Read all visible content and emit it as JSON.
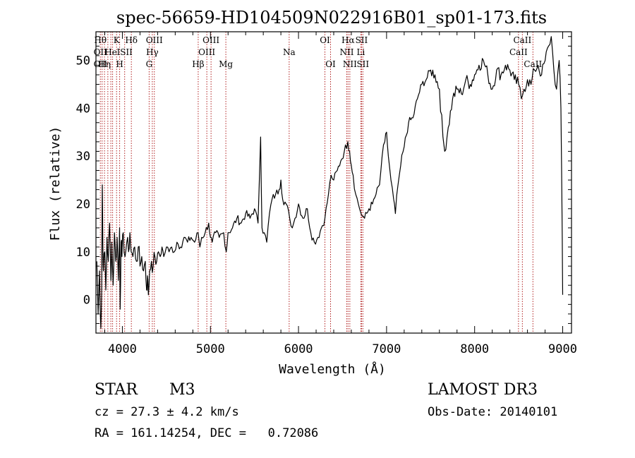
{
  "chart_data": {
    "type": "line",
    "title": "spec-56659-HD104509N022916B01_sp01-173.fits",
    "xlabel": "Wavelength (Å)",
    "ylabel": "Flux (relative)",
    "xlim": [
      3700,
      9100
    ],
    "ylim": [
      -7,
      56
    ],
    "x_ticks": [
      4000,
      5000,
      6000,
      7000,
      8000,
      9000
    ],
    "y_ticks": [
      0,
      10,
      20,
      30,
      40,
      50
    ],
    "grid": false,
    "line_color": "#000000",
    "marker_color": "#b22222",
    "series": [
      {
        "name": "spectrum",
        "points": [
          [
            3710,
            8
          ],
          [
            3725,
            -3
          ],
          [
            3740,
            6
          ],
          [
            3755,
            -6
          ],
          [
            3765,
            2
          ],
          [
            3772,
            24
          ],
          [
            3778,
            12
          ],
          [
            3785,
            6
          ],
          [
            3800,
            10
          ],
          [
            3812,
            2
          ],
          [
            3825,
            13
          ],
          [
            3840,
            8
          ],
          [
            3855,
            16
          ],
          [
            3870,
            4
          ],
          [
            3880,
            12
          ],
          [
            3895,
            3
          ],
          [
            3910,
            14
          ],
          [
            3925,
            8
          ],
          [
            3940,
            13
          ],
          [
            3955,
            4
          ],
          [
            3968,
            15
          ],
          [
            3975,
            -2
          ],
          [
            3985,
            12
          ],
          [
            3995,
            9
          ],
          [
            4010,
            14
          ],
          [
            4030,
            9
          ],
          [
            4050,
            12
          ],
          [
            4070,
            10
          ],
          [
            4085,
            14
          ],
          [
            4100,
            10
          ],
          [
            4120,
            9
          ],
          [
            4140,
            11
          ],
          [
            4160,
            8
          ],
          [
            4180,
            11
          ],
          [
            4200,
            7
          ],
          [
            4220,
            9
          ],
          [
            4240,
            6
          ],
          [
            4260,
            8
          ],
          [
            4275,
            2
          ],
          [
            4285,
            5
          ],
          [
            4295,
            1
          ],
          [
            4310,
            6
          ],
          [
            4330,
            8
          ],
          [
            4350,
            7
          ],
          [
            4370,
            9
          ],
          [
            4390,
            8
          ],
          [
            4410,
            10
          ],
          [
            4430,
            9
          ],
          [
            4450,
            11
          ],
          [
            4470,
            9
          ],
          [
            4500,
            11
          ],
          [
            4530,
            10
          ],
          [
            4560,
            11
          ],
          [
            4590,
            10
          ],
          [
            4620,
            12
          ],
          [
            4660,
            11
          ],
          [
            4700,
            13
          ],
          [
            4740,
            12
          ],
          [
            4780,
            13
          ],
          [
            4820,
            12
          ],
          [
            4860,
            14
          ],
          [
            4880,
            11
          ],
          [
            4900,
            13
          ],
          [
            4940,
            14
          ],
          [
            4980,
            16
          ],
          [
            5000,
            13
          ],
          [
            5020,
            12
          ],
          [
            5060,
            14
          ],
          [
            5100,
            13
          ],
          [
            5150,
            14
          ],
          [
            5180,
            10
          ],
          [
            5200,
            14
          ],
          [
            5250,
            15
          ],
          [
            5300,
            17
          ],
          [
            5350,
            16
          ],
          [
            5400,
            18
          ],
          [
            5450,
            17
          ],
          [
            5500,
            19
          ],
          [
            5540,
            16
          ],
          [
            5570,
            34
          ],
          [
            5585,
            15
          ],
          [
            5610,
            14
          ],
          [
            5640,
            12
          ],
          [
            5670,
            18
          ],
          [
            5700,
            21
          ],
          [
            5740,
            22
          ],
          [
            5780,
            23
          ],
          [
            5800,
            25
          ],
          [
            5820,
            21
          ],
          [
            5860,
            20
          ],
          [
            5900,
            17
          ],
          [
            5930,
            15
          ],
          [
            5960,
            17
          ],
          [
            6000,
            20
          ],
          [
            6050,
            17
          ],
          [
            6100,
            19
          ],
          [
            6140,
            14
          ],
          [
            6180,
            12
          ],
          [
            6220,
            13
          ],
          [
            6260,
            15
          ],
          [
            6300,
            17
          ],
          [
            6340,
            22
          ],
          [
            6370,
            26
          ],
          [
            6400,
            25
          ],
          [
            6440,
            27
          ],
          [
            6480,
            29
          ],
          [
            6520,
            31
          ],
          [
            6560,
            33
          ],
          [
            6580,
            31
          ],
          [
            6600,
            28
          ],
          [
            6620,
            26
          ],
          [
            6650,
            22
          ],
          [
            6680,
            20
          ],
          [
            6710,
            18
          ],
          [
            6750,
            17
          ],
          [
            6800,
            19
          ],
          [
            6840,
            20
          ],
          [
            6880,
            22
          ],
          [
            6920,
            24
          ],
          [
            6950,
            30
          ],
          [
            6980,
            33
          ],
          [
            7000,
            35
          ],
          [
            7020,
            30
          ],
          [
            7050,
            25
          ],
          [
            7080,
            21
          ],
          [
            7100,
            18
          ],
          [
            7130,
            24
          ],
          [
            7160,
            28
          ],
          [
            7200,
            32
          ],
          [
            7250,
            37
          ],
          [
            7300,
            38
          ],
          [
            7350,
            42
          ],
          [
            7400,
            45
          ],
          [
            7450,
            46
          ],
          [
            7500,
            48
          ],
          [
            7550,
            47
          ],
          [
            7600,
            44
          ],
          [
            7640,
            34
          ],
          [
            7660,
            31
          ],
          [
            7700,
            36
          ],
          [
            7750,
            42
          ],
          [
            7800,
            44
          ],
          [
            7850,
            43
          ],
          [
            7900,
            46
          ],
          [
            7950,
            45
          ],
          [
            8000,
            47
          ],
          [
            8050,
            49
          ],
          [
            8100,
            50
          ],
          [
            8150,
            47
          ],
          [
            8200,
            44
          ],
          [
            8250,
            48
          ],
          [
            8300,
            47
          ],
          [
            8350,
            49
          ],
          [
            8400,
            48
          ],
          [
            8450,
            46
          ],
          [
            8500,
            45
          ],
          [
            8530,
            42
          ],
          [
            8560,
            44
          ],
          [
            8600,
            46
          ],
          [
            8640,
            45
          ],
          [
            8680,
            48
          ],
          [
            8720,
            49
          ],
          [
            8760,
            47
          ],
          [
            8800,
            50
          ],
          [
            8840,
            53
          ],
          [
            8870,
            55
          ],
          [
            8900,
            48
          ],
          [
            8930,
            44
          ],
          [
            8960,
            50
          ],
          [
            8980,
            40
          ],
          [
            8995,
            13
          ],
          [
            9000,
            1
          ]
        ]
      }
    ],
    "line_markers": [
      {
        "wl": 3750,
        "labels": [
          {
            "text": "Hθ",
            "row": 0
          },
          {
            "text": "OII",
            "row": 1
          },
          {
            "text": "OII",
            "row": 2
          }
        ]
      },
      {
        "wl": 3770,
        "labels": []
      },
      {
        "wl": 3797,
        "labels": [
          {
            "text": "Hη",
            "row": 2
          }
        ]
      },
      {
        "wl": 3835,
        "labels": []
      },
      {
        "wl": 3869,
        "labels": [
          {
            "text": "He",
            "row": 1
          }
        ]
      },
      {
        "wl": 3889,
        "labels": []
      },
      {
        "wl": 3934,
        "labels": [
          {
            "text": "K",
            "row": 0
          }
        ]
      },
      {
        "wl": 3969,
        "labels": [
          {
            "text": "H",
            "row": 2
          }
        ]
      },
      {
        "wl": 4026,
        "labels": [
          {
            "text": "ISII",
            "row": 1
          }
        ]
      },
      {
        "wl": 4102,
        "labels": [
          {
            "text": "Hδ",
            "row": 0
          }
        ]
      },
      {
        "wl": 4304,
        "labels": [
          {
            "text": "G",
            "row": 2
          }
        ]
      },
      {
        "wl": 4340,
        "labels": [
          {
            "text": "Hγ",
            "row": 1
          }
        ]
      },
      {
        "wl": 4363,
        "labels": [
          {
            "text": "OIII",
            "row": 0
          }
        ]
      },
      {
        "wl": 4861,
        "labels": [
          {
            "text": "Hβ",
            "row": 2
          }
        ]
      },
      {
        "wl": 4959,
        "labels": [
          {
            "text": "OIII",
            "row": 1
          }
        ]
      },
      {
        "wl": 5007,
        "labels": [
          {
            "text": "OIII",
            "row": 0
          }
        ]
      },
      {
        "wl": 5175,
        "labels": [
          {
            "text": "Mg",
            "row": 2
          }
        ]
      },
      {
        "wl": 5894,
        "labels": [
          {
            "text": "Na",
            "row": 1
          }
        ]
      },
      {
        "wl": 6300,
        "labels": [
          {
            "text": "OI",
            "row": 0
          }
        ]
      },
      {
        "wl": 6364,
        "labels": [
          {
            "text": "OI",
            "row": 2
          }
        ]
      },
      {
        "wl": 6548,
        "labels": [
          {
            "text": "NII",
            "row": 1
          }
        ]
      },
      {
        "wl": 6563,
        "labels": [
          {
            "text": "Hα",
            "row": 0
          }
        ]
      },
      {
        "wl": 6583,
        "labels": [
          {
            "text": "NII",
            "row": 2
          }
        ]
      },
      {
        "wl": 6708,
        "labels": [
          {
            "text": "Li",
            "row": 1
          }
        ]
      },
      {
        "wl": 6716,
        "labels": [
          {
            "text": "SII",
            "row": 0
          }
        ]
      },
      {
        "wl": 6731,
        "labels": [
          {
            "text": "SII",
            "row": 2
          }
        ]
      },
      {
        "wl": 8498,
        "labels": [
          {
            "text": "CaII",
            "row": 1
          }
        ]
      },
      {
        "wl": 8542,
        "labels": [
          {
            "text": "CaII",
            "row": 0
          }
        ]
      },
      {
        "wl": 8662,
        "labels": [
          {
            "text": "CaII",
            "row": 2
          }
        ]
      }
    ]
  },
  "footer": {
    "object_class": "STAR",
    "subclass": "M3",
    "redshift": "cz = 27.3 ± 4.2 km/s",
    "coordinates": "RA = 161.14254, DEC =   0.72086",
    "survey": "LAMOST DR3",
    "obs_date": "Obs-Date: 20140101"
  }
}
